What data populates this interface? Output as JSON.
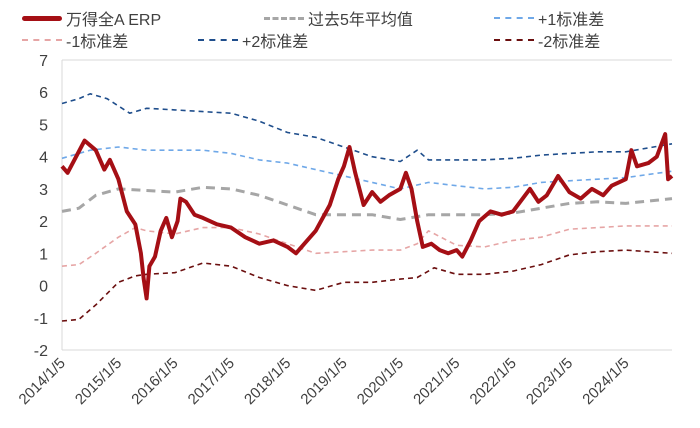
{
  "chart_data": {
    "type": "line",
    "title": "",
    "xlabel": "",
    "ylabel": "",
    "ylim": [
      -2,
      7
    ],
    "yticks": [
      "7",
      "6",
      "5",
      "4",
      "3",
      "2",
      "1",
      "0",
      "-1",
      "-2"
    ],
    "ytick_values": [
      7,
      6,
      5,
      4,
      3,
      2,
      1,
      0,
      -1,
      -2
    ],
    "xlim": [
      2014.0,
      2024.82
    ],
    "xticks": [
      "2014/1/5",
      "2015/1/5",
      "2016/1/5",
      "2017/1/5",
      "2018/1/5",
      "2019/1/5",
      "2020/1/5",
      "2021/1/5",
      "2022/1/5",
      "2023/1/5",
      "2024/1/5"
    ],
    "xtick_values": [
      2014,
      2015,
      2016,
      2017,
      2018,
      2019,
      2020,
      2021,
      2022,
      2023,
      2024
    ],
    "legend_position": "top",
    "series": [
      {
        "name": "万得全A  ERP",
        "color": "#a50f15",
        "style": "solid",
        "x": [
          2014.0,
          2014.1,
          2014.25,
          2014.4,
          2014.6,
          2014.75,
          2014.85,
          2015.0,
          2015.15,
          2015.3,
          2015.4,
          2015.45,
          2015.5,
          2015.55,
          2015.65,
          2015.75,
          2015.85,
          2015.95,
          2016.05,
          2016.1,
          2016.2,
          2016.35,
          2016.5,
          2016.75,
          2017.0,
          2017.25,
          2017.5,
          2017.75,
          2018.0,
          2018.15,
          2018.3,
          2018.5,
          2018.75,
          2018.9,
          2019.0,
          2019.1,
          2019.2,
          2019.35,
          2019.5,
          2019.65,
          2019.8,
          2020.0,
          2020.1,
          2020.2,
          2020.3,
          2020.4,
          2020.55,
          2020.7,
          2020.85,
          2021.0,
          2021.1,
          2021.25,
          2021.4,
          2021.6,
          2021.8,
          2022.0,
          2022.3,
          2022.45,
          2022.6,
          2022.8,
          2023.0,
          2023.2,
          2023.4,
          2023.6,
          2023.75,
          2024.0,
          2024.1,
          2024.2,
          2024.4,
          2024.55,
          2024.7,
          2024.75,
          2024.82
        ],
        "y": [
          3.7,
          3.5,
          4.0,
          4.5,
          4.2,
          3.6,
          3.9,
          3.3,
          2.3,
          1.9,
          1.0,
          0.2,
          -0.4,
          0.6,
          0.9,
          1.7,
          2.1,
          1.5,
          2.0,
          2.7,
          2.6,
          2.2,
          2.1,
          1.9,
          1.8,
          1.5,
          1.3,
          1.4,
          1.2,
          1.0,
          1.3,
          1.7,
          2.5,
          3.3,
          3.7,
          4.3,
          3.5,
          2.5,
          2.9,
          2.6,
          2.8,
          3.0,
          3.5,
          3.0,
          2.0,
          1.2,
          1.3,
          1.1,
          1.0,
          1.1,
          0.9,
          1.4,
          2.0,
          2.3,
          2.2,
          2.3,
          3.0,
          2.6,
          2.8,
          3.4,
          2.9,
          2.7,
          3.0,
          2.8,
          3.1,
          3.3,
          4.2,
          3.7,
          3.8,
          4.0,
          4.7,
          3.3,
          3.4
        ]
      },
      {
        "name": "过去5年平均值",
        "color": "#a6a6a6",
        "style": "dash-long",
        "x": [
          2014,
          2014.3,
          2014.6,
          2015,
          2015.5,
          2016,
          2016.5,
          2017,
          2017.5,
          2018,
          2018.5,
          2019,
          2019.5,
          2020,
          2020.5,
          2021,
          2021.5,
          2022,
          2022.5,
          2023,
          2023.5,
          2024,
          2024.82
        ],
        "y": [
          2.3,
          2.4,
          2.8,
          3.0,
          2.95,
          2.9,
          3.05,
          3.0,
          2.8,
          2.5,
          2.2,
          2.2,
          2.2,
          2.05,
          2.2,
          2.2,
          2.2,
          2.25,
          2.4,
          2.55,
          2.6,
          2.55,
          2.7
        ]
      },
      {
        "name": "+1标准差",
        "color": "#6fa8e8",
        "style": "dash",
        "x": [
          2014,
          2014.5,
          2015,
          2015.5,
          2016,
          2016.5,
          2017,
          2017.5,
          2018,
          2018.5,
          2019,
          2019.5,
          2020,
          2020.5,
          2021,
          2021.5,
          2022,
          2022.5,
          2023,
          2023.5,
          2024,
          2024.82
        ],
        "y": [
          3.95,
          4.2,
          4.3,
          4.2,
          4.2,
          4.2,
          4.1,
          3.9,
          3.8,
          3.6,
          3.4,
          3.2,
          3.0,
          3.2,
          3.1,
          3.0,
          3.05,
          3.2,
          3.25,
          3.3,
          3.35,
          3.55
        ]
      },
      {
        "name": "-1标准差",
        "color": "#e6a5a5",
        "style": "dash",
        "x": [
          2014,
          2014.3,
          2014.6,
          2015,
          2015.3,
          2015.5,
          2016,
          2016.5,
          2017,
          2017.5,
          2018,
          2018.5,
          2019,
          2019.5,
          2020,
          2020.3,
          2020.5,
          2021,
          2021.5,
          2022,
          2022.5,
          2023,
          2023.5,
          2024,
          2024.82
        ],
        "y": [
          0.6,
          0.65,
          1.0,
          1.5,
          1.8,
          1.7,
          1.6,
          1.8,
          1.8,
          1.6,
          1.3,
          1.0,
          1.05,
          1.1,
          1.1,
          1.3,
          1.7,
          1.25,
          1.2,
          1.4,
          1.5,
          1.75,
          1.8,
          1.85,
          1.85
        ]
      },
      {
        "name": "+2标准差",
        "color": "#1f4e8c",
        "style": "dash",
        "x": [
          2014,
          2014.3,
          2014.5,
          2014.8,
          2015.2,
          2015.5,
          2016,
          2016.5,
          2017,
          2017.5,
          2018,
          2018.5,
          2019,
          2019.5,
          2020,
          2020.3,
          2020.5,
          2021,
          2021.5,
          2022,
          2022.5,
          2023,
          2023.5,
          2024,
          2024.82
        ],
        "y": [
          5.65,
          5.8,
          5.95,
          5.8,
          5.35,
          5.5,
          5.45,
          5.4,
          5.35,
          5.1,
          4.75,
          4.6,
          4.3,
          4.0,
          3.85,
          4.2,
          3.9,
          3.9,
          3.9,
          3.95,
          4.05,
          4.1,
          4.15,
          4.15,
          4.4
        ]
      },
      {
        "name": "-2标准差",
        "color": "#6b0f0f",
        "style": "dash",
        "x": [
          2014,
          2014.3,
          2014.6,
          2015,
          2015.3,
          2015.5,
          2016,
          2016.5,
          2017,
          2017.5,
          2018,
          2018.5,
          2019,
          2019.5,
          2020,
          2020.3,
          2020.6,
          2021,
          2021.5,
          2022,
          2022.5,
          2023,
          2023.5,
          2024,
          2024.82
        ],
        "y": [
          -1.1,
          -1.05,
          -0.6,
          0.1,
          0.3,
          0.35,
          0.4,
          0.7,
          0.6,
          0.25,
          0.0,
          -0.15,
          0.1,
          0.1,
          0.2,
          0.25,
          0.55,
          0.35,
          0.35,
          0.45,
          0.65,
          0.95,
          1.05,
          1.1,
          1.0
        ]
      }
    ]
  }
}
